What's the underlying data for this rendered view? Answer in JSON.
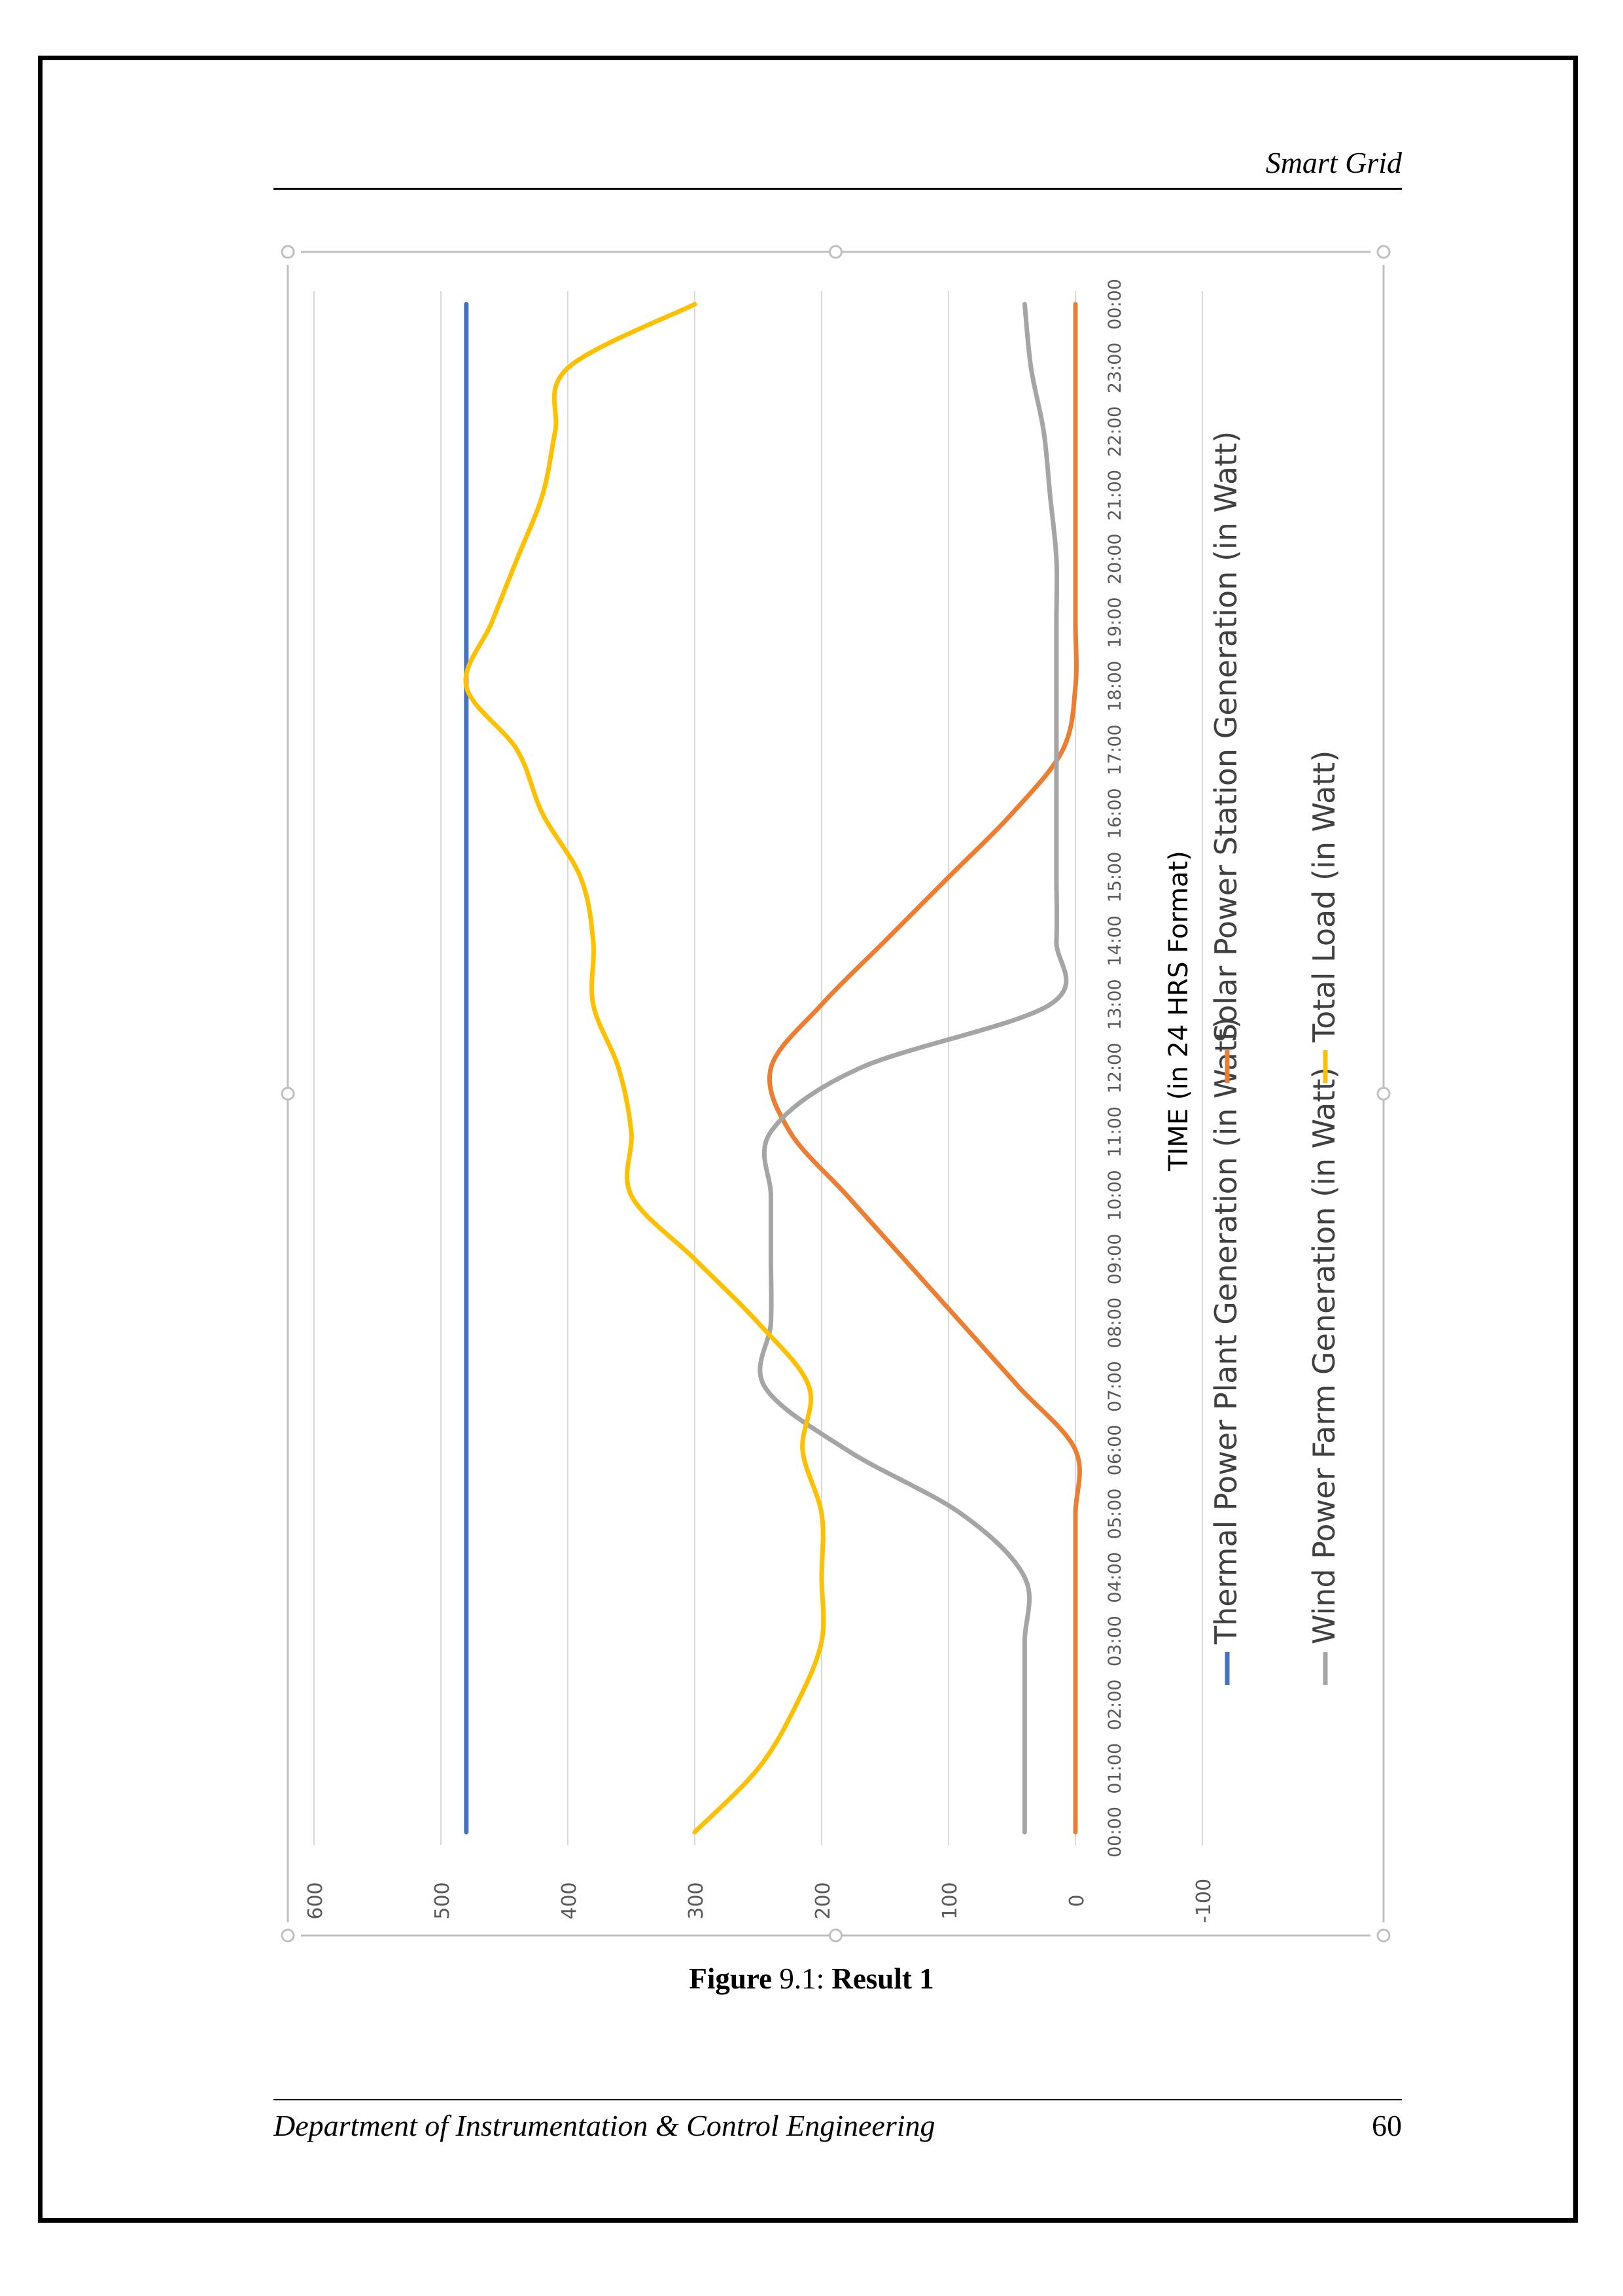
{
  "header": {
    "running_title": "Smart Grid"
  },
  "caption": {
    "label": "Figure",
    "number": "9.1:",
    "title": "Result 1"
  },
  "footer": {
    "department": "Department of Instrumentation & Control Engineering",
    "page_number": "60"
  },
  "chart_data": {
    "type": "line",
    "orientation": "rotated-90",
    "xlabel": "TIME (in 24 HRS Format)",
    "ylabel": "",
    "title": "",
    "x": [
      "00:00",
      "01:00",
      "02:00",
      "03:00",
      "04:00",
      "05:00",
      "06:00",
      "07:00",
      "08:00",
      "09:00",
      "10:00",
      "11:00",
      "12:00",
      "13:00",
      "14:00",
      "15:00",
      "16:00",
      "17:00",
      "18:00",
      "19:00",
      "20:00",
      "21:00",
      "22:00",
      "23:00",
      "00:00"
    ],
    "ylim": [
      -100,
      600
    ],
    "yticks": [
      -100,
      0,
      100,
      200,
      300,
      400,
      500,
      600
    ],
    "grid": true,
    "legend_position": "bottom",
    "series": [
      {
        "name": "Thermal Power Plant Generation (in Watt)",
        "color": "#4472c4",
        "values": [
          480,
          480,
          480,
          480,
          480,
          480,
          480,
          480,
          480,
          480,
          480,
          480,
          480,
          480,
          480,
          480,
          480,
          480,
          480,
          480,
          480,
          480,
          480,
          480,
          480
        ]
      },
      {
        "name": "Solar Power Station Generation (in Watt)",
        "color": "#ed7d31",
        "values": [
          0,
          0,
          0,
          0,
          0,
          0,
          0,
          45,
          90,
          135,
          180,
          225,
          240,
          200,
          150,
          100,
          50,
          10,
          0,
          0,
          0,
          0,
          0,
          0,
          0
        ]
      },
      {
        "name": "Wind Power Farm Generation (in Watt)",
        "color": "#a5a5a5",
        "values": [
          40,
          40,
          40,
          40,
          40,
          90,
          180,
          245,
          240,
          240,
          240,
          240,
          170,
          20,
          15,
          15,
          15,
          15,
          15,
          15,
          15,
          20,
          25,
          35,
          40
        ]
      },
      {
        "name": "Total Load (in Watt)",
        "color": "#ffc000",
        "values": [
          300,
          250,
          220,
          200,
          200,
          200,
          215,
          210,
          250,
          300,
          350,
          350,
          360,
          380,
          380,
          390,
          420,
          440,
          480,
          460,
          440,
          420,
          410,
          400,
          300
        ]
      }
    ]
  }
}
